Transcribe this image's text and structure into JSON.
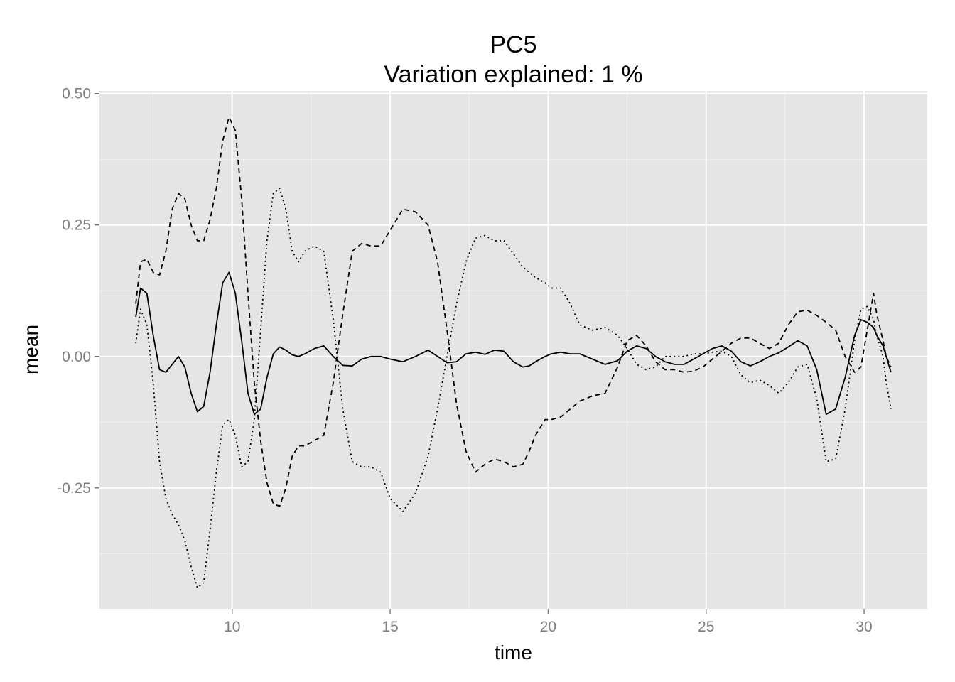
{
  "chart_data": {
    "type": "line",
    "title": "PC5",
    "subtitle": "Variation explained: 1 %",
    "xlabel": "time",
    "ylabel": "mean",
    "xlim": [
      5.8,
      32.0
    ],
    "ylim": [
      -0.48,
      0.505
    ],
    "x_ticks": [
      10,
      15,
      20,
      25,
      30
    ],
    "x_tick_labels": [
      "10",
      "15",
      "20",
      "25",
      "30"
    ],
    "y_ticks": [
      0.5,
      0.25,
      0.0,
      -0.25
    ],
    "y_tick_labels": [
      "0.50",
      "0.25",
      "0.00",
      "-0.25"
    ],
    "grid": true,
    "legend": "none",
    "series": [
      {
        "line": "solid",
        "color": "#000000",
        "x": [
          6.95,
          7.1,
          7.3,
          7.5,
          7.7,
          7.9,
          8.1,
          8.3,
          8.5,
          8.7,
          8.9,
          9.1,
          9.3,
          9.5,
          9.7,
          9.9,
          10.1,
          10.3,
          10.5,
          10.7,
          10.9,
          11.1,
          11.3,
          11.5,
          11.7,
          11.9,
          12.1,
          12.3,
          12.6,
          12.9,
          13.2,
          13.5,
          13.8,
          14.1,
          14.4,
          14.7,
          15.0,
          15.4,
          15.8,
          16.2,
          16.5,
          16.8,
          17.1,
          17.4,
          17.7,
          18.0,
          18.3,
          18.6,
          18.9,
          19.2,
          19.4,
          19.6,
          19.9,
          20.1,
          20.4,
          20.7,
          21.0,
          21.4,
          21.8,
          22.2,
          22.5,
          22.8,
          23.1,
          23.4,
          23.7,
          24.0,
          24.3,
          24.6,
          24.9,
          25.2,
          25.5,
          25.8,
          26.1,
          26.4,
          26.7,
          27.0,
          27.3,
          27.6,
          27.9,
          28.2,
          28.5,
          28.8,
          29.1,
          29.4,
          29.7,
          29.9,
          30.1,
          30.3,
          30.4,
          30.6,
          30.7,
          30.85
        ],
        "y": [
          0.075,
          0.13,
          0.12,
          0.04,
          -0.025,
          -0.03,
          -0.015,
          0.0,
          -0.02,
          -0.07,
          -0.105,
          -0.095,
          -0.03,
          0.06,
          0.14,
          0.16,
          0.12,
          0.03,
          -0.07,
          -0.11,
          -0.1,
          -0.04,
          0.005,
          0.018,
          0.012,
          0.003,
          0.0,
          0.005,
          0.015,
          0.02,
          0.0,
          -0.017,
          -0.018,
          -0.005,
          0.0,
          0.0,
          -0.005,
          -0.01,
          0.0,
          0.012,
          0.0,
          -0.012,
          -0.01,
          0.005,
          0.008,
          0.004,
          0.012,
          0.01,
          -0.01,
          -0.02,
          -0.018,
          -0.01,
          0.0,
          0.005,
          0.008,
          0.005,
          0.005,
          -0.005,
          -0.015,
          -0.008,
          0.01,
          0.02,
          0.015,
          0.0,
          -0.01,
          -0.015,
          -0.015,
          -0.005,
          0.005,
          0.015,
          0.02,
          0.01,
          -0.01,
          -0.018,
          -0.01,
          0.0,
          0.007,
          0.018,
          0.03,
          0.02,
          -0.025,
          -0.11,
          -0.1,
          -0.04,
          0.04,
          0.07,
          0.065,
          0.055,
          0.04,
          0.02,
          0.0,
          -0.03
        ]
      },
      {
        "line": "dashed",
        "color": "#000000",
        "x": [
          6.95,
          7.1,
          7.3,
          7.5,
          7.7,
          7.9,
          8.1,
          8.3,
          8.5,
          8.7,
          8.9,
          9.1,
          9.3,
          9.5,
          9.7,
          9.9,
          10.1,
          10.3,
          10.5,
          10.7,
          10.9,
          11.1,
          11.3,
          11.5,
          11.7,
          11.9,
          12.1,
          12.3,
          12.6,
          12.9,
          13.2,
          13.5,
          13.8,
          14.1,
          14.4,
          14.7,
          15.0,
          15.4,
          15.8,
          16.2,
          16.5,
          16.8,
          17.1,
          17.4,
          17.7,
          18.0,
          18.3,
          18.6,
          18.9,
          19.2,
          19.4,
          19.6,
          19.9,
          20.1,
          20.4,
          20.7,
          21.0,
          21.4,
          21.8,
          22.2,
          22.5,
          22.8,
          23.1,
          23.4,
          23.7,
          24.0,
          24.3,
          24.6,
          24.9,
          25.2,
          25.5,
          25.8,
          26.1,
          26.4,
          26.7,
          27.0,
          27.3,
          27.6,
          27.9,
          28.2,
          28.5,
          28.8,
          29.1,
          29.4,
          29.7,
          29.9,
          30.1,
          30.3,
          30.4,
          30.6,
          30.7,
          30.85
        ],
        "y": [
          0.1,
          0.18,
          0.185,
          0.16,
          0.155,
          0.2,
          0.28,
          0.31,
          0.3,
          0.25,
          0.22,
          0.22,
          0.26,
          0.32,
          0.41,
          0.455,
          0.43,
          0.3,
          0.12,
          -0.05,
          -0.16,
          -0.24,
          -0.28,
          -0.285,
          -0.25,
          -0.19,
          -0.17,
          -0.17,
          -0.16,
          -0.15,
          -0.05,
          0.08,
          0.2,
          0.215,
          0.21,
          0.21,
          0.24,
          0.28,
          0.275,
          0.25,
          0.18,
          0.05,
          -0.09,
          -0.18,
          -0.22,
          -0.205,
          -0.195,
          -0.2,
          -0.21,
          -0.205,
          -0.18,
          -0.15,
          -0.12,
          -0.12,
          -0.115,
          -0.1,
          -0.085,
          -0.075,
          -0.07,
          -0.02,
          0.03,
          0.04,
          0.02,
          -0.01,
          -0.025,
          -0.025,
          -0.03,
          -0.028,
          -0.02,
          -0.005,
          0.01,
          0.025,
          0.035,
          0.035,
          0.025,
          0.015,
          0.025,
          0.06,
          0.085,
          0.088,
          0.078,
          0.065,
          0.05,
          0.0,
          -0.03,
          -0.02,
          0.05,
          0.12,
          0.08,
          0.03,
          0.0,
          -0.02
        ]
      },
      {
        "line": "dotted",
        "color": "#000000",
        "x": [
          6.95,
          7.1,
          7.3,
          7.5,
          7.7,
          7.9,
          8.1,
          8.3,
          8.5,
          8.7,
          8.9,
          9.1,
          9.3,
          9.5,
          9.7,
          9.9,
          10.1,
          10.3,
          10.5,
          10.7,
          10.9,
          11.1,
          11.3,
          11.5,
          11.7,
          11.9,
          12.1,
          12.3,
          12.6,
          12.9,
          13.2,
          13.5,
          13.8,
          14.1,
          14.4,
          14.7,
          15.0,
          15.4,
          15.8,
          16.2,
          16.5,
          16.8,
          17.1,
          17.4,
          17.7,
          18.0,
          18.3,
          18.6,
          18.9,
          19.2,
          19.4,
          19.6,
          19.9,
          20.1,
          20.4,
          20.7,
          21.0,
          21.4,
          21.8,
          22.2,
          22.5,
          22.8,
          23.1,
          23.4,
          23.7,
          24.0,
          24.3,
          24.6,
          24.9,
          25.2,
          25.5,
          25.8,
          26.1,
          26.4,
          26.7,
          27.0,
          27.3,
          27.6,
          27.9,
          28.2,
          28.5,
          28.8,
          29.1,
          29.4,
          29.7,
          29.9,
          30.1,
          30.3,
          30.4,
          30.6,
          30.7,
          30.85
        ],
        "y": [
          0.025,
          0.09,
          0.06,
          -0.05,
          -0.2,
          -0.27,
          -0.3,
          -0.32,
          -0.35,
          -0.4,
          -0.44,
          -0.43,
          -0.33,
          -0.22,
          -0.13,
          -0.12,
          -0.15,
          -0.21,
          -0.2,
          -0.12,
          0.05,
          0.22,
          0.31,
          0.32,
          0.28,
          0.2,
          0.18,
          0.2,
          0.21,
          0.2,
          0.07,
          -0.1,
          -0.2,
          -0.21,
          -0.21,
          -0.22,
          -0.27,
          -0.295,
          -0.26,
          -0.19,
          -0.1,
          0.0,
          0.1,
          0.18,
          0.225,
          0.23,
          0.22,
          0.22,
          0.195,
          0.17,
          0.16,
          0.15,
          0.14,
          0.13,
          0.13,
          0.1,
          0.06,
          0.05,
          0.055,
          0.04,
          0.015,
          -0.015,
          -0.025,
          -0.02,
          0.0,
          0.0,
          0.0,
          0.005,
          0.005,
          0.008,
          0.01,
          0.0,
          -0.035,
          -0.05,
          -0.045,
          -0.055,
          -0.07,
          -0.05,
          -0.02,
          -0.015,
          -0.08,
          -0.2,
          -0.195,
          -0.1,
          0.03,
          0.09,
          0.095,
          0.07,
          0.04,
          0.0,
          -0.05,
          -0.1
        ]
      }
    ]
  }
}
